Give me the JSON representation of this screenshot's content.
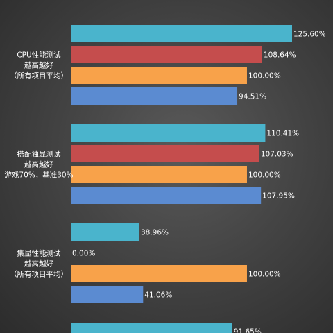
{
  "chart_data": {
    "type": "bar",
    "orientation": "horizontal",
    "xlim": [
      0,
      125.6
    ],
    "series_colors": [
      "#4ab4cc",
      "#c54d4d",
      "#f8a24a",
      "#5b8bd1"
    ],
    "groups": [
      {
        "label_lines": [
          "CPU性能测试",
          "越高越好",
          "（所有项目平均）"
        ],
        "values": [
          125.6,
          108.64,
          100.0,
          94.51
        ],
        "value_labels": [
          "125.60%",
          "108.64%",
          "100.00%",
          "94.51%"
        ]
      },
      {
        "label_lines": [
          "搭配独显测试",
          "越高越好",
          "游戏70%，基准30%"
        ],
        "values": [
          110.41,
          107.03,
          100.0,
          107.95
        ],
        "value_labels": [
          "110.41%",
          "107.03%",
          "100.00%",
          "107.95%"
        ]
      },
      {
        "label_lines": [
          "集显性能测试",
          "越高越好",
          "（所有项目平均）"
        ],
        "values": [
          38.96,
          0.0,
          100.0,
          41.06
        ],
        "value_labels": [
          "38.96%",
          "0.00%",
          "100.00%",
          "41.06%"
        ]
      },
      {
        "label_lines": [],
        "values": [
          91.65
        ],
        "value_labels": [
          "91.65%"
        ]
      }
    ]
  }
}
